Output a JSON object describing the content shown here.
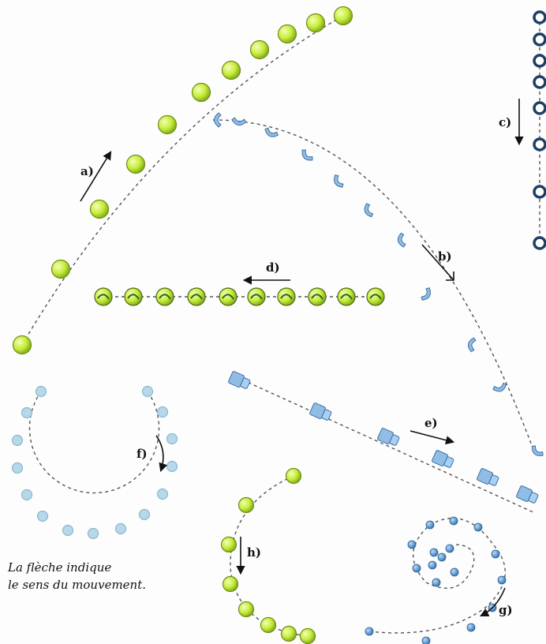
{
  "labels": {
    "a": "a)",
    "b": "b)",
    "c": "c)",
    "d": "d)",
    "e": "e)",
    "f": "f)",
    "g": "g)",
    "h": "h)"
  },
  "caption": {
    "line1": "La flèche indique",
    "line2": "le sens du mouvement."
  },
  "colors": {
    "green_ball": "#c6ec3a",
    "blue_object": "#8fbde6",
    "dark_ring": "#1d3e66",
    "dashed_path": "#555555"
  }
}
